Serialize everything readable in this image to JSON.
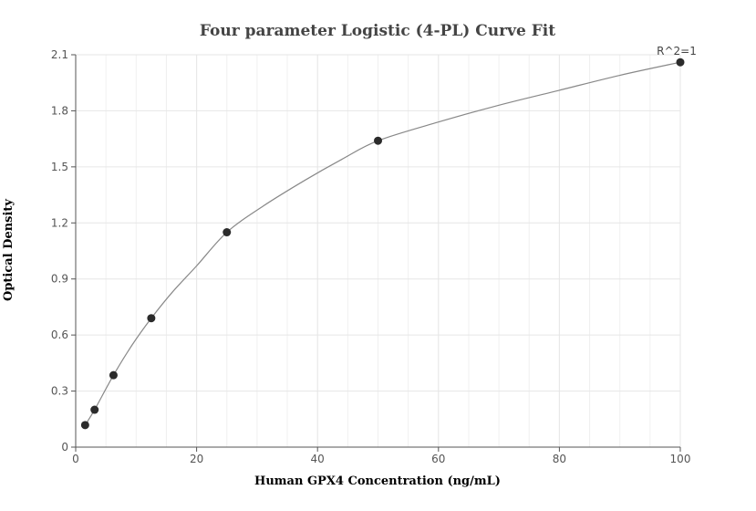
{
  "chart_data": {
    "type": "scatter",
    "title": "Four parameter Logistic (4-PL) Curve Fit",
    "xlabel": "Human GPX4 Concentration (ng/mL)",
    "ylabel": "Optical Density",
    "xlim": [
      0,
      100
    ],
    "ylim": [
      0,
      2.1
    ],
    "x_ticks": [
      0,
      20,
      40,
      60,
      80,
      100
    ],
    "y_ticks": [
      0,
      0.3,
      0.6,
      0.9,
      1.2,
      1.5,
      1.8,
      2.1
    ],
    "y_tick_labels": [
      "0",
      "0.3",
      "0.6",
      "0.9",
      "1.2",
      "1.5",
      "1.8",
      "2.1"
    ],
    "grid": true,
    "series": [
      {
        "points": [
          {
            "x": 1.5625,
            "y": 0.118
          },
          {
            "x": 3.125,
            "y": 0.2
          },
          {
            "x": 6.25,
            "y": 0.385
          },
          {
            "x": 12.5,
            "y": 0.69
          },
          {
            "x": 25,
            "y": 1.15
          },
          {
            "x": 50,
            "y": 1.64
          },
          {
            "x": 100,
            "y": 2.06
          }
        ]
      }
    ],
    "fit_curve": {
      "model": "4PL",
      "points": [
        {
          "x": 1.5625,
          "y": 0.118
        },
        {
          "x": 3.125,
          "y": 0.2
        },
        {
          "x": 6.25,
          "y": 0.385
        },
        {
          "x": 9.4,
          "y": 0.55
        },
        {
          "x": 12.5,
          "y": 0.69
        },
        {
          "x": 16,
          "y": 0.83
        },
        {
          "x": 20,
          "y": 0.97
        },
        {
          "x": 25,
          "y": 1.15
        },
        {
          "x": 31,
          "y": 1.29
        },
        {
          "x": 38,
          "y": 1.43
        },
        {
          "x": 44,
          "y": 1.54
        },
        {
          "x": 50,
          "y": 1.64
        },
        {
          "x": 60,
          "y": 1.74
        },
        {
          "x": 70,
          "y": 1.83
        },
        {
          "x": 80,
          "y": 1.91
        },
        {
          "x": 90,
          "y": 1.99
        },
        {
          "x": 100,
          "y": 2.06
        }
      ]
    },
    "annotation": "R^2=1",
    "colors": {
      "point": "#2b2b2b",
      "curve": "#888888",
      "grid": "#e6e6e6",
      "axis": "#555555"
    }
  }
}
